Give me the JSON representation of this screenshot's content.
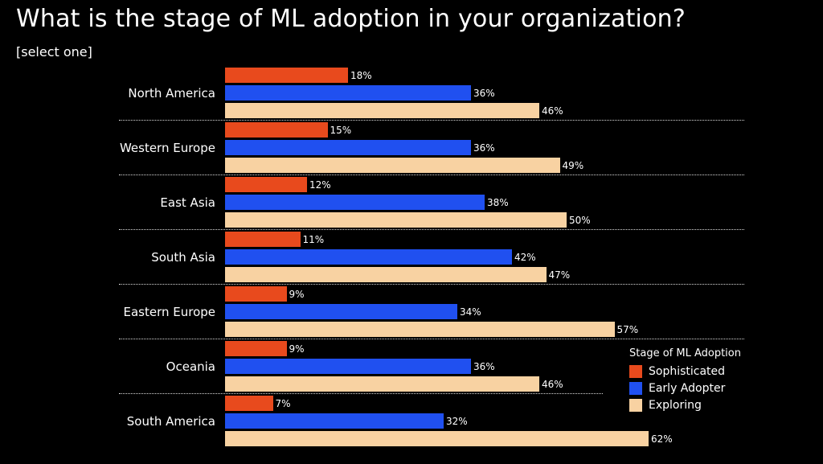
{
  "title": "What is the stage of ML adoption in your organization?",
  "subtitle": "[select one]",
  "colors": {
    "background": "#000000",
    "text": "#ffffff",
    "sophisticated": "#e84a1d",
    "early_adopter": "#2050f0",
    "exploring": "#f8d2a2",
    "separator": "rgba(255,255,255,0.85)"
  },
  "legend": {
    "title": "Stage of ML Adoption",
    "items": [
      {
        "label": "Sophisticated",
        "color_key": "sophisticated"
      },
      {
        "label": "Early Adopter",
        "color_key": "early_adopter"
      },
      {
        "label": "Exploring",
        "color_key": "exploring"
      }
    ]
  },
  "chart_data": {
    "type": "bar",
    "orientation": "horizontal",
    "title": "What is the stage of ML adoption in your organization?",
    "subtitle": "[select one]",
    "categories": [
      "North America",
      "Western Europe",
      "East Asia",
      "South Asia",
      "Eastern Europe",
      "Oceania",
      "South America"
    ],
    "series": [
      {
        "name": "Sophisticated",
        "color_key": "sophisticated",
        "values": [
          18,
          15,
          12,
          11,
          9,
          9,
          7
        ]
      },
      {
        "name": "Early Adopter",
        "color_key": "early_adopter",
        "values": [
          36,
          36,
          38,
          42,
          34,
          36,
          32
        ]
      },
      {
        "name": "Exploring",
        "color_key": "exploring",
        "values": [
          46,
          49,
          50,
          47,
          57,
          46,
          62
        ]
      }
    ],
    "value_suffix": "%",
    "xlim": [
      0,
      86
    ],
    "grid": false,
    "legend_position": "bottom-right",
    "group_separators": "dotted"
  }
}
